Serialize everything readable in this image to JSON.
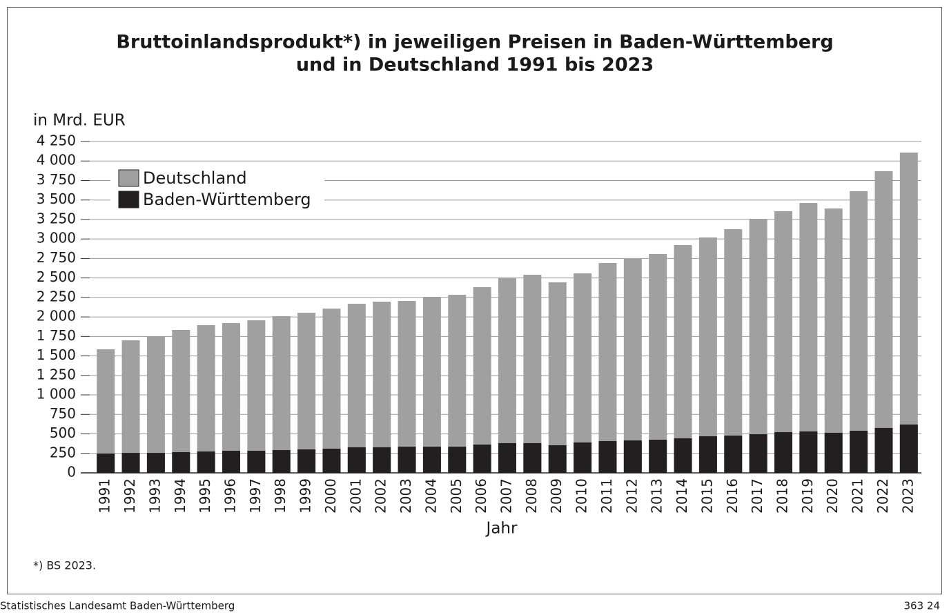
{
  "chart_data": {
    "type": "bar",
    "overlap": true,
    "title": [
      "Bruttoinlandsprodukt*) in jeweiligen Preisen in Baden-Württemberg",
      "und in Deutschland 1991 bis 2023"
    ],
    "y_label": "in Mrd. EUR",
    "x_label": "Jahr",
    "footnote": "*) BS 2023.",
    "source": "Statistisches Landesamt Baden-Württemberg",
    "code": "363 24",
    "categories": [
      "1991",
      "1992",
      "1993",
      "1994",
      "1995",
      "1996",
      "1997",
      "1998",
      "1999",
      "2000",
      "2001",
      "2002",
      "2003",
      "2004",
      "2005",
      "2006",
      "2007",
      "2008",
      "2009",
      "2010",
      "2011",
      "2012",
      "2013",
      "2014",
      "2015",
      "2016",
      "2017",
      "2018",
      "2019",
      "2020",
      "2021",
      "2022",
      "2023"
    ],
    "series": [
      {
        "name": "Deutschland",
        "color": "#a0a0a0",
        "values": [
          1585,
          1700,
          1753,
          1833,
          1895,
          1921,
          1957,
          2010,
          2054,
          2107,
          2169,
          2196,
          2205,
          2258,
          2284,
          2382,
          2497,
          2541,
          2444,
          2559,
          2692,
          2745,
          2807,
          2922,
          3019,
          3126,
          3258,
          3356,
          3462,
          3391,
          3613,
          3869,
          4108
        ]
      },
      {
        "name": "Baden-Württemberg",
        "color": "#231f20",
        "values": [
          248,
          256,
          256,
          266,
          274,
          283,
          283,
          292,
          301,
          310,
          328,
          328,
          336,
          336,
          336,
          363,
          381,
          381,
          354,
          390,
          407,
          416,
          425,
          443,
          469,
          478,
          496,
          522,
          531,
          514,
          540,
          576,
          620
        ]
      }
    ],
    "ylim": [
      0,
      4250
    ],
    "yticks": [
      0,
      250,
      500,
      750,
      {
        "value": 1000,
        "label": "1 000"
      },
      {
        "value": 1250,
        "label": "1 250"
      },
      {
        "value": 1500,
        "label": "1 500"
      },
      {
        "value": 1750,
        "label": "1 750"
      },
      {
        "value": 2000,
        "label": "2 000"
      },
      {
        "value": 2250,
        "label": "2 250"
      },
      {
        "value": 2500,
        "label": "2 500"
      },
      {
        "value": 2750,
        "label": "2 750"
      },
      {
        "value": 3000,
        "label": "3 000"
      },
      {
        "value": 3250,
        "label": "3 250"
      },
      {
        "value": 3500,
        "label": "3 500"
      },
      {
        "value": 3750,
        "label": "3 750"
      },
      {
        "value": 4000,
        "label": "4 000"
      },
      {
        "value": 4250,
        "label": "4 250"
      }
    ],
    "grid": true,
    "legend": "upper left"
  }
}
